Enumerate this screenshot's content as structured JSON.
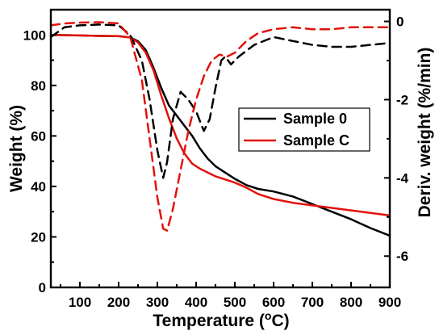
{
  "chart_data": {
    "type": "line",
    "title": "",
    "xlabel": "Temperature (",
    "xlabel_sup": "o",
    "xlabel_tail": "C)",
    "ylabel": "Weight (%)",
    "y2label": "Deriv. weight (%/min)",
    "xlim": [
      25,
      900
    ],
    "ylim": [
      0,
      110
    ],
    "y2lim": [
      -6.8,
      0.3
    ],
    "x_ticks": [
      100,
      200,
      300,
      400,
      500,
      600,
      700,
      800,
      900
    ],
    "y_ticks": [
      0,
      20,
      40,
      60,
      80,
      100
    ],
    "y2_ticks": [
      0,
      -2,
      -4,
      -6
    ],
    "legend": {
      "position": "right-center",
      "entries": [
        {
          "label": "Sample 0",
          "color": "#000000"
        },
        {
          "label": "Sample C",
          "color": "#e3120b"
        }
      ]
    },
    "series": [
      {
        "name": "Sample 0",
        "axis": "left",
        "style": "solid",
        "color": "#000000",
        "points": [
          [
            25,
            100
          ],
          [
            100,
            99.8
          ],
          [
            150,
            99.6
          ],
          [
            200,
            99.5
          ],
          [
            230,
            99
          ],
          [
            250,
            97.5
          ],
          [
            270,
            94
          ],
          [
            290,
            87
          ],
          [
            310,
            79
          ],
          [
            330,
            72
          ],
          [
            350,
            68
          ],
          [
            370,
            64
          ],
          [
            390,
            60
          ],
          [
            410,
            55
          ],
          [
            430,
            51
          ],
          [
            450,
            48
          ],
          [
            480,
            45
          ],
          [
            500,
            43
          ],
          [
            530,
            40.5
          ],
          [
            560,
            39
          ],
          [
            600,
            38
          ],
          [
            650,
            36
          ],
          [
            700,
            33
          ],
          [
            750,
            30
          ],
          [
            800,
            27
          ],
          [
            850,
            23.5
          ],
          [
            900,
            20.5
          ]
        ]
      },
      {
        "name": "Sample C",
        "axis": "left",
        "style": "solid",
        "color": "#e3120b",
        "points": [
          [
            25,
            100
          ],
          [
            100,
            99.8
          ],
          [
            150,
            99.6
          ],
          [
            200,
            99.5
          ],
          [
            230,
            99
          ],
          [
            250,
            97
          ],
          [
            270,
            93
          ],
          [
            290,
            86
          ],
          [
            310,
            76
          ],
          [
            330,
            67
          ],
          [
            350,
            59
          ],
          [
            370,
            53
          ],
          [
            390,
            49
          ],
          [
            410,
            47
          ],
          [
            430,
            45.5
          ],
          [
            450,
            44
          ],
          [
            480,
            42.5
          ],
          [
            500,
            41.5
          ],
          [
            530,
            39.5
          ],
          [
            560,
            37
          ],
          [
            600,
            35
          ],
          [
            650,
            33.5
          ],
          [
            700,
            32.5
          ],
          [
            750,
            31.5
          ],
          [
            800,
            30.5
          ],
          [
            850,
            29.5
          ],
          [
            900,
            28.5
          ]
        ]
      },
      {
        "name": "Sample 0",
        "axis": "right",
        "style": "dashed",
        "color": "#000000",
        "points": [
          [
            25,
            -0.4
          ],
          [
            60,
            -0.15
          ],
          [
            100,
            -0.1
          ],
          [
            150,
            -0.08
          ],
          [
            200,
            -0.1
          ],
          [
            230,
            -0.35
          ],
          [
            260,
            -1.0
          ],
          [
            280,
            -2.0
          ],
          [
            300,
            -3.3
          ],
          [
            315,
            -4.0
          ],
          [
            325,
            -3.6
          ],
          [
            340,
            -2.5
          ],
          [
            360,
            -1.8
          ],
          [
            380,
            -2.0
          ],
          [
            400,
            -2.3
          ],
          [
            420,
            -2.8
          ],
          [
            435,
            -2.5
          ],
          [
            450,
            -1.7
          ],
          [
            465,
            -1.0
          ],
          [
            475,
            -0.9
          ],
          [
            490,
            -1.1
          ],
          [
            510,
            -0.9
          ],
          [
            550,
            -0.6
          ],
          [
            600,
            -0.4
          ],
          [
            650,
            -0.5
          ],
          [
            700,
            -0.6
          ],
          [
            750,
            -0.65
          ],
          [
            800,
            -0.65
          ],
          [
            850,
            -0.6
          ],
          [
            900,
            -0.55
          ]
        ]
      },
      {
        "name": "Sample C",
        "axis": "right",
        "style": "dashed",
        "color": "#e3120b",
        "points": [
          [
            25,
            -0.1
          ],
          [
            60,
            -0.05
          ],
          [
            100,
            -0.03
          ],
          [
            150,
            -0.02
          ],
          [
            200,
            -0.05
          ],
          [
            230,
            -0.4
          ],
          [
            260,
            -1.5
          ],
          [
            280,
            -3.0
          ],
          [
            300,
            -4.5
          ],
          [
            315,
            -5.3
          ],
          [
            325,
            -5.35
          ],
          [
            340,
            -4.8
          ],
          [
            360,
            -3.8
          ],
          [
            380,
            -2.8
          ],
          [
            400,
            -2.0
          ],
          [
            420,
            -1.4
          ],
          [
            440,
            -1.0
          ],
          [
            460,
            -0.85
          ],
          [
            480,
            -0.9
          ],
          [
            500,
            -0.8
          ],
          [
            530,
            -0.5
          ],
          [
            560,
            -0.3
          ],
          [
            600,
            -0.2
          ],
          [
            650,
            -0.15
          ],
          [
            700,
            -0.2
          ],
          [
            750,
            -0.2
          ],
          [
            800,
            -0.15
          ],
          [
            850,
            -0.15
          ],
          [
            900,
            -0.15
          ]
        ]
      }
    ]
  }
}
